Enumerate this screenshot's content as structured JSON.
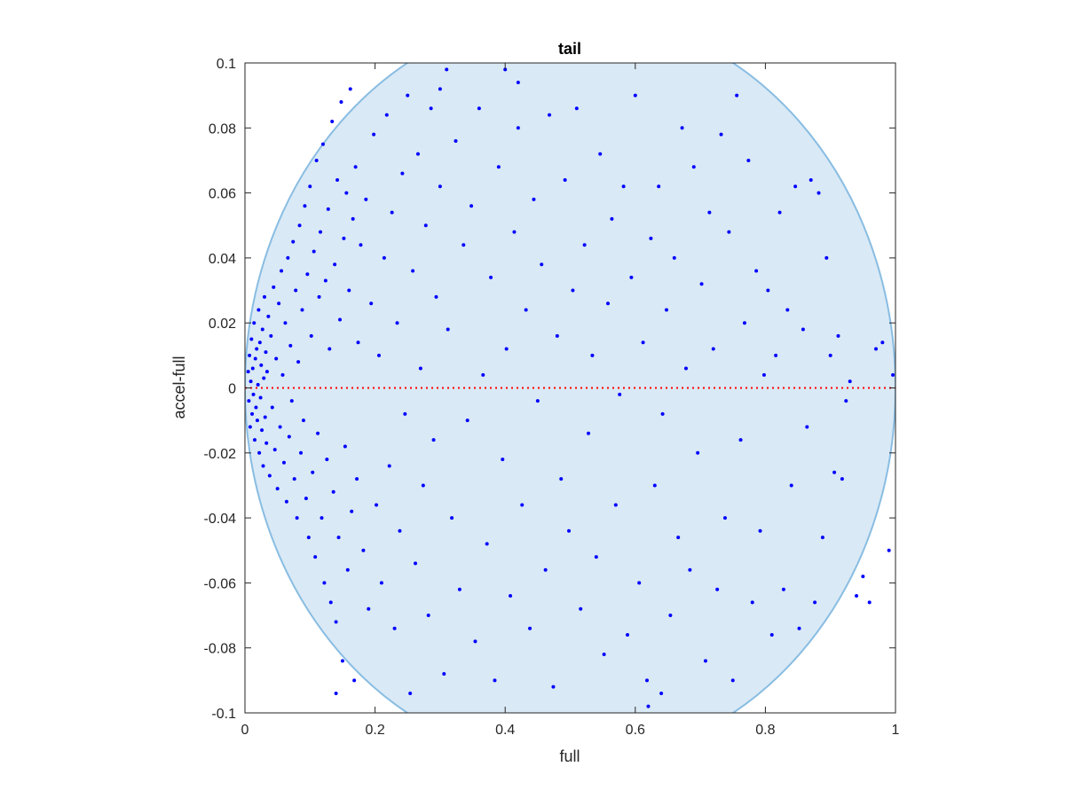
{
  "chart_data": {
    "type": "scatter",
    "title": "tail",
    "xlabel": "full",
    "ylabel": "accel-full",
    "xlim": [
      0,
      1
    ],
    "ylim": [
      -0.1,
      0.1
    ],
    "xticks": [
      0,
      0.2,
      0.4,
      0.6,
      0.8,
      1
    ],
    "xtick_labels": [
      "0",
      "0.2",
      "0.4",
      "0.6",
      "0.8",
      "1"
    ],
    "yticks": [
      -0.1,
      -0.08,
      -0.06,
      -0.04,
      -0.02,
      0,
      0.02,
      0.04,
      0.06,
      0.08,
      0.1
    ],
    "ytick_labels": [
      "-0.1",
      "-0.08",
      "-0.06",
      "-0.04",
      "-0.02",
      "0",
      "0.02",
      "0.04",
      "0.06",
      "0.08",
      "0.1"
    ],
    "grid": false,
    "reference_line": {
      "y": 0,
      "style": "dotted",
      "color": "#ff0000"
    },
    "region": {
      "shape": "ellipse",
      "fill": "#d9e9f5",
      "stroke": "#89bde2",
      "cx": 0.5,
      "cy": 0,
      "rx": 0.5,
      "ry": 0.1155
    },
    "series": [
      {
        "color": "#0000ff",
        "points": [
          [
            0.005,
            0.005
          ],
          [
            0.006,
            -0.004
          ],
          [
            0.007,
            0.01
          ],
          [
            0.008,
            -0.012
          ],
          [
            0.009,
            0.002
          ],
          [
            0.01,
            0.015
          ],
          [
            0.011,
            -0.008
          ],
          [
            0.012,
            0.006
          ],
          [
            0.013,
            -0.002
          ],
          [
            0.014,
            0.02
          ],
          [
            0.015,
            -0.016
          ],
          [
            0.016,
            0.009
          ],
          [
            0.017,
            -0.006
          ],
          [
            0.018,
            0.012
          ],
          [
            0.019,
            -0.01
          ],
          [
            0.02,
            0.001
          ],
          [
            0.021,
            0.024
          ],
          [
            0.022,
            -0.02
          ],
          [
            0.023,
            0.014
          ],
          [
            0.024,
            -0.003
          ],
          [
            0.025,
            0.007
          ],
          [
            0.026,
            -0.013
          ],
          [
            0.027,
            0.018
          ],
          [
            0.028,
            -0.024
          ],
          [
            0.029,
            0.003
          ],
          [
            0.03,
            0.028
          ],
          [
            0.031,
            -0.009
          ],
          [
            0.032,
            0.011
          ],
          [
            0.033,
            -0.017
          ],
          [
            0.034,
            0.005
          ],
          [
            0.036,
            0.022
          ],
          [
            0.038,
            -0.027
          ],
          [
            0.04,
            0.016
          ],
          [
            0.042,
            -0.006
          ],
          [
            0.044,
            0.031
          ],
          [
            0.046,
            -0.019
          ],
          [
            0.048,
            0.009
          ],
          [
            0.05,
            -0.031
          ],
          [
            0.052,
            0.026
          ],
          [
            0.054,
            -0.012
          ],
          [
            0.056,
            0.036
          ],
          [
            0.058,
            0.004
          ],
          [
            0.06,
            -0.023
          ],
          [
            0.062,
            0.02
          ],
          [
            0.064,
            -0.035
          ],
          [
            0.066,
            0.04
          ],
          [
            0.068,
            -0.015
          ],
          [
            0.07,
            0.013
          ],
          [
            0.072,
            -0.004
          ],
          [
            0.074,
            0.045
          ],
          [
            0.076,
            -0.028
          ],
          [
            0.078,
            0.03
          ],
          [
            0.08,
            -0.04
          ],
          [
            0.082,
            0.008
          ],
          [
            0.084,
            0.05
          ],
          [
            0.086,
            -0.02
          ],
          [
            0.088,
            0.024
          ],
          [
            0.09,
            -0.01
          ],
          [
            0.092,
            0.056
          ],
          [
            0.094,
            -0.034
          ],
          [
            0.096,
            0.035
          ],
          [
            0.098,
            -0.046
          ],
          [
            0.1,
            0.062
          ],
          [
            0.102,
            0.016
          ],
          [
            0.104,
            -0.026
          ],
          [
            0.106,
            0.042
          ],
          [
            0.108,
            -0.052
          ],
          [
            0.11,
            0.07
          ],
          [
            0.112,
            -0.014
          ],
          [
            0.114,
            0.028
          ],
          [
            0.116,
            0.048
          ],
          [
            0.118,
            -0.04
          ],
          [
            0.12,
            0.075
          ],
          [
            0.122,
            -0.06
          ],
          [
            0.124,
            0.033
          ],
          [
            0.126,
            -0.022
          ],
          [
            0.128,
            0.055
          ],
          [
            0.13,
            0.012
          ],
          [
            0.132,
            -0.066
          ],
          [
            0.134,
            0.082
          ],
          [
            0.136,
            -0.032
          ],
          [
            0.138,
            0.038
          ],
          [
            0.14,
            -0.072
          ],
          [
            0.142,
            0.064
          ],
          [
            0.144,
            -0.046
          ],
          [
            0.146,
            0.021
          ],
          [
            0.148,
            0.088
          ],
          [
            0.15,
            -0.084
          ],
          [
            0.152,
            0.046
          ],
          [
            0.154,
            -0.018
          ],
          [
            0.156,
            0.06
          ],
          [
            0.158,
            -0.056
          ],
          [
            0.16,
            0.03
          ],
          [
            0.162,
            0.092
          ],
          [
            0.164,
            -0.038
          ],
          [
            0.166,
            0.052
          ],
          [
            0.168,
            -0.09
          ],
          [
            0.17,
            0.068
          ],
          [
            0.172,
            -0.028
          ],
          [
            0.174,
            0.014
          ],
          [
            0.178,
            0.044
          ],
          [
            0.182,
            -0.05
          ],
          [
            0.186,
            0.058
          ],
          [
            0.19,
            -0.068
          ],
          [
            0.194,
            0.026
          ],
          [
            0.198,
            0.078
          ],
          [
            0.202,
            -0.036
          ],
          [
            0.206,
            0.01
          ],
          [
            0.21,
            -0.06
          ],
          [
            0.214,
            0.04
          ],
          [
            0.218,
            0.084
          ],
          [
            0.222,
            -0.024
          ],
          [
            0.226,
            0.054
          ],
          [
            0.23,
            -0.074
          ],
          [
            0.234,
            0.02
          ],
          [
            0.238,
            -0.044
          ],
          [
            0.242,
            0.066
          ],
          [
            0.246,
            -0.008
          ],
          [
            0.25,
            0.09
          ],
          [
            0.254,
            -0.094
          ],
          [
            0.258,
            0.036
          ],
          [
            0.262,
            -0.054
          ],
          [
            0.266,
            0.072
          ],
          [
            0.27,
            0.006
          ],
          [
            0.274,
            -0.03
          ],
          [
            0.278,
            0.05
          ],
          [
            0.282,
            -0.07
          ],
          [
            0.286,
            0.086
          ],
          [
            0.29,
            -0.016
          ],
          [
            0.294,
            0.028
          ],
          [
            0.3,
            0.062
          ],
          [
            0.306,
            -0.088
          ],
          [
            0.312,
            0.018
          ],
          [
            0.318,
            -0.04
          ],
          [
            0.324,
            0.076
          ],
          [
            0.33,
            -0.062
          ],
          [
            0.336,
            0.044
          ],
          [
            0.342,
            -0.01
          ],
          [
            0.348,
            0.056
          ],
          [
            0.354,
            -0.078
          ],
          [
            0.36,
            0.086
          ],
          [
            0.366,
            0.004
          ],
          [
            0.372,
            -0.048
          ],
          [
            0.378,
            0.034
          ],
          [
            0.384,
            -0.09
          ],
          [
            0.39,
            0.068
          ],
          [
            0.396,
            -0.022
          ],
          [
            0.402,
            0.012
          ],
          [
            0.408,
            -0.064
          ],
          [
            0.414,
            0.048
          ],
          [
            0.42,
            0.08
          ],
          [
            0.426,
            -0.036
          ],
          [
            0.432,
            0.024
          ],
          [
            0.438,
            -0.074
          ],
          [
            0.444,
            0.058
          ],
          [
            0.45,
            -0.004
          ],
          [
            0.456,
            0.038
          ],
          [
            0.462,
            -0.056
          ],
          [
            0.468,
            0.084
          ],
          [
            0.474,
            -0.092
          ],
          [
            0.48,
            0.016
          ],
          [
            0.486,
            -0.028
          ],
          [
            0.492,
            0.064
          ],
          [
            0.498,
            -0.044
          ],
          [
            0.504,
            0.03
          ],
          [
            0.51,
            0.086
          ],
          [
            0.516,
            -0.068
          ],
          [
            0.522,
            0.044
          ],
          [
            0.528,
            -0.014
          ],
          [
            0.534,
            0.01
          ],
          [
            0.54,
            -0.052
          ],
          [
            0.546,
            0.072
          ],
          [
            0.552,
            -0.082
          ],
          [
            0.558,
            0.026
          ],
          [
            0.564,
            0.052
          ],
          [
            0.57,
            -0.036
          ],
          [
            0.576,
            -0.002
          ],
          [
            0.582,
            0.062
          ],
          [
            0.588,
            -0.076
          ],
          [
            0.594,
            0.034
          ],
          [
            0.6,
            0.09
          ],
          [
            0.606,
            -0.06
          ],
          [
            0.612,
            0.014
          ],
          [
            0.618,
            -0.09
          ],
          [
            0.624,
            0.046
          ],
          [
            0.63,
            -0.03
          ],
          [
            0.636,
            0.062
          ],
          [
            0.642,
            -0.008
          ],
          [
            0.648,
            0.024
          ],
          [
            0.654,
            -0.07
          ],
          [
            0.66,
            0.04
          ],
          [
            0.666,
            -0.046
          ],
          [
            0.672,
            0.08
          ],
          [
            0.678,
            0.006
          ],
          [
            0.684,
            -0.056
          ],
          [
            0.69,
            0.068
          ],
          [
            0.696,
            -0.02
          ],
          [
            0.702,
            0.032
          ],
          [
            0.708,
            -0.084
          ],
          [
            0.714,
            0.054
          ],
          [
            0.72,
            0.012
          ],
          [
            0.726,
            -0.062
          ],
          [
            0.732,
            0.078
          ],
          [
            0.738,
            -0.04
          ],
          [
            0.744,
            0.048
          ],
          [
            0.75,
            -0.09
          ],
          [
            0.756,
            0.09
          ],
          [
            0.762,
            -0.016
          ],
          [
            0.768,
            0.02
          ],
          [
            0.774,
            0.07
          ],
          [
            0.78,
            -0.066
          ],
          [
            0.786,
            0.036
          ],
          [
            0.792,
            -0.044
          ],
          [
            0.798,
            0.004
          ],
          [
            0.804,
            0.03
          ],
          [
            0.81,
            -0.076
          ],
          [
            0.816,
            0.01
          ],
          [
            0.822,
            0.054
          ],
          [
            0.828,
            -0.062
          ],
          [
            0.834,
            0.024
          ],
          [
            0.84,
            -0.03
          ],
          [
            0.846,
            0.062
          ],
          [
            0.852,
            -0.074
          ],
          [
            0.858,
            0.018
          ],
          [
            0.864,
            -0.012
          ],
          [
            0.87,
            0.064
          ],
          [
            0.876,
            -0.066
          ],
          [
            0.882,
            0.06
          ],
          [
            0.888,
            -0.046
          ],
          [
            0.894,
            0.04
          ],
          [
            0.9,
            0.01
          ],
          [
            0.906,
            -0.026
          ],
          [
            0.912,
            0.016
          ],
          [
            0.918,
            -0.028
          ],
          [
            0.924,
            -0.004
          ],
          [
            0.93,
            0.002
          ],
          [
            0.94,
            -0.064
          ],
          [
            0.95,
            -0.058
          ],
          [
            0.96,
            -0.066
          ],
          [
            0.97,
            0.012
          ],
          [
            0.98,
            0.014
          ],
          [
            0.99,
            -0.05
          ],
          [
            0.996,
            0.004
          ],
          [
            0.4,
            0.098
          ],
          [
            0.42,
            0.094
          ],
          [
            0.3,
            0.092
          ],
          [
            0.31,
            0.098
          ],
          [
            0.62,
            -0.098
          ],
          [
            0.64,
            -0.094
          ],
          [
            0.14,
            -0.094
          ]
        ]
      }
    ]
  }
}
